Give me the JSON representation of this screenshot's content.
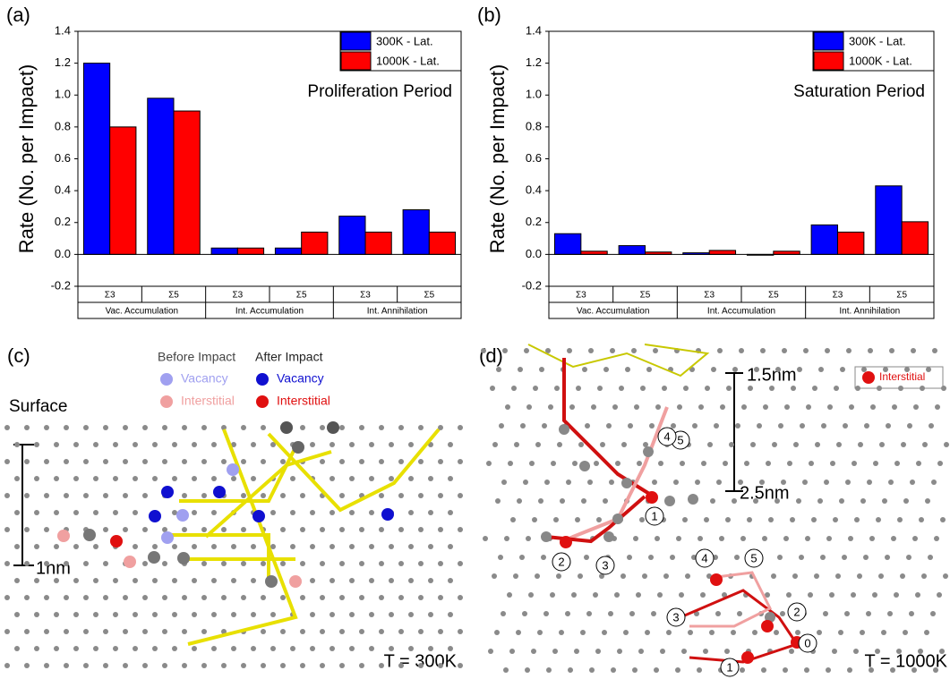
{
  "chart_data": [
    {
      "type": "bar",
      "panel": "(a)",
      "annotation": "Proliferation Period",
      "y_label": "Rate (No. per Impact)",
      "categories": [
        "Σ3",
        "Σ5",
        "Σ3",
        "Σ5",
        "Σ3",
        "Σ5"
      ],
      "groups": [
        "Vac. Accumulation",
        "Int. Accumulation",
        "Int. Annihilation"
      ],
      "series": [
        {
          "name": "300K - Lat.",
          "color": "#0000ff",
          "values": [
            1.2,
            0.98,
            0.04,
            0.04,
            0.24,
            0.28
          ]
        },
        {
          "name": "1000K - Lat.",
          "color": "#ff0000",
          "values": [
            0.8,
            0.9,
            0.04,
            0.14,
            0.14,
            0.14
          ]
        }
      ],
      "ylim": [
        -0.2,
        1.4
      ],
      "yticks": [
        -0.2,
        {
          "value": 0,
          "label": "0.0"
        },
        0.2,
        0.4,
        0.6,
        0.8,
        {
          "value": 1,
          "label": "1.0"
        },
        1.2,
        1.4
      ],
      "legend": "upper right"
    },
    {
      "type": "bar",
      "panel": "(b)",
      "annotation": "Saturation Period",
      "y_label": "Rate (No. per Impact)",
      "categories": [
        "Σ3",
        "Σ5",
        "Σ3",
        "Σ5",
        "Σ3",
        "Σ5"
      ],
      "groups": [
        "Vac. Accumulation",
        "Int. Accumulation",
        "Int. Annihilation"
      ],
      "series": [
        {
          "name": "300K - Lat.",
          "color": "#0000ff",
          "values": [
            0.13,
            0.055,
            0.01,
            -0.005,
            0.185,
            0.43
          ]
        },
        {
          "name": "1000K - Lat.",
          "color": "#ff0000",
          "values": [
            0.02,
            0.015,
            0.025,
            0.02,
            0.14,
            0.205
          ]
        }
      ],
      "ylim": [
        -0.2,
        1.4
      ],
      "yticks": [
        -0.2,
        {
          "value": 0,
          "label": "0.0"
        },
        0.2,
        0.4,
        0.6,
        0.8,
        {
          "value": 1,
          "label": "1.0"
        },
        1.2,
        1.4
      ],
      "legend": "upper right"
    }
  ],
  "sim_c": {
    "label": "(c)",
    "before": "Before Impact",
    "after": "After Impact",
    "vacancy_before": "Vacancy",
    "interstitial_before": "Interstitial",
    "vacancy_after": "Vacancy",
    "interstitial_after": "Interstitial",
    "surface": "Surface",
    "scale": "1nm",
    "temperature": "T = 300K"
  },
  "sim_d": {
    "label": "(d)",
    "legend": "Interstitial",
    "scale_top": "1.5nm",
    "scale_bottom": "2.5nm",
    "temperature": "T = 1000K",
    "markers": [
      "5",
      "4",
      "1",
      "2",
      "3",
      "4",
      "5",
      "3",
      "2",
      "0",
      "1"
    ]
  }
}
